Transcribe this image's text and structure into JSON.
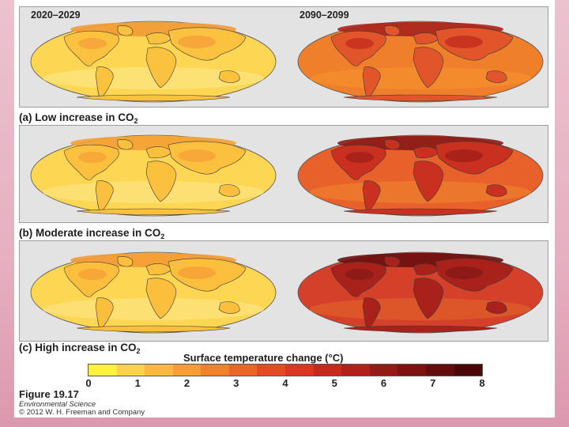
{
  "periods": {
    "left": "2020–2029",
    "right": "2090–2099"
  },
  "scenarios": [
    {
      "label_main": "(a) Low increase in CO",
      "label_sub": "2"
    },
    {
      "label_main": "(b) Moderate increase in CO",
      "label_sub": "2"
    },
    {
      "label_main": "(c) High increase in CO",
      "label_sub": "2"
    }
  ],
  "maps": [
    {
      "name": "a-2020",
      "base": "#fdd653",
      "ocean": "#fce47a",
      "land": "#fbc23f",
      "hot": "#f6a33a",
      "arctic": "#f39a35"
    },
    {
      "name": "a-2090",
      "base": "#ef7f2a",
      "ocean": "#f38d2d",
      "land": "#e2552a",
      "hot": "#c7301f",
      "arctic": "#a9231b"
    },
    {
      "name": "b-2020",
      "base": "#fdd653",
      "ocean": "#fde27a",
      "land": "#fbc03e",
      "hot": "#f6a537",
      "arctic": "#f4a033"
    },
    {
      "name": "b-2090",
      "base": "#e8602a",
      "ocean": "#ec7a2c",
      "land": "#c9301f",
      "hot": "#a6201a",
      "arctic": "#8a1a16"
    },
    {
      "name": "c-2020",
      "base": "#fdd653",
      "ocean": "#fde27a",
      "land": "#fbbf3d",
      "hot": "#f6a236",
      "arctic": "#f49a33"
    },
    {
      "name": "c-2090",
      "base": "#d4402a",
      "ocean": "#de5a2a",
      "land": "#a8221b",
      "hot": "#8a1a17",
      "arctic": "#6a0e0e"
    }
  ],
  "legend": {
    "title": "Surface temperature change (°C)",
    "colors": [
      "#fef33a",
      "#fdd14a",
      "#fbb83c",
      "#f89c34",
      "#f3812c",
      "#ec6428",
      "#e44a24",
      "#dd3620",
      "#c8291c",
      "#b22019",
      "#951915",
      "#7e1311",
      "#650d0c",
      "#4a0808"
    ],
    "ticks": [
      "0",
      "1",
      "2",
      "3",
      "4",
      "5",
      "6",
      "7",
      "8"
    ]
  },
  "figure": {
    "title": "Figure 19.17",
    "subtitle": "Environmental Science",
    "copyright": "© 2012 W. H. Freeman and Company"
  }
}
